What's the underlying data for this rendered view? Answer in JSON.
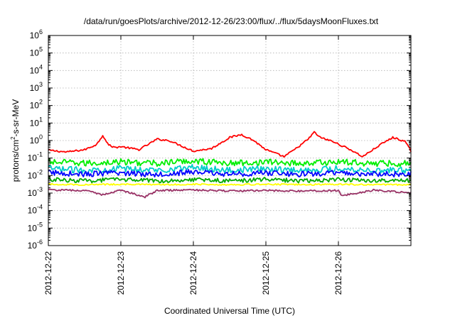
{
  "chart_data": {
    "type": "line",
    "title": "/data/run/goesPlots/archive/2012-12-26/23:00/flux/../flux/5daysMoonFluxes.txt",
    "xlabel": "Coordinated Universal Time (UTC)",
    "ylabel_base": "protons/cm",
    "ylabel_sup": "2",
    "ylabel_rest": "-s-sr-MeV",
    "y_scale": "log",
    "ylim": [
      1e-06,
      1000000.0
    ],
    "y_ticks": [
      {
        "exp": "-6"
      },
      {
        "exp": "-5"
      },
      {
        "exp": "-4"
      },
      {
        "exp": "-3"
      },
      {
        "exp": "-2"
      },
      {
        "exp": "-1"
      },
      {
        "exp": "0"
      },
      {
        "exp": "1"
      },
      {
        "exp": "2"
      },
      {
        "exp": "3"
      },
      {
        "exp": "4"
      },
      {
        "exp": "5"
      },
      {
        "exp": "6"
      }
    ],
    "y_tick_base": "10",
    "xlim": [
      "2012-12-22",
      "2012-12-27"
    ],
    "x_ticks": [
      "2012-12-22",
      "2012-12-23",
      "2012-12-24",
      "2012-12-25",
      "2012-12-26"
    ],
    "grid": true,
    "series": [
      {
        "color": "#ff0000",
        "x": [
          "2012-12-22 00:00",
          "2012-12-22 06:00",
          "2012-12-22 12:00",
          "2012-12-22 16:00",
          "2012-12-22 18:00",
          "2012-12-22 20:00",
          "2012-12-22 22:00",
          "2012-12-23 00:00",
          "2012-12-23 06:00",
          "2012-12-23 12:00",
          "2012-12-23 16:00",
          "2012-12-23 20:00",
          "2012-12-24 00:00",
          "2012-12-24 06:00",
          "2012-12-24 12:00",
          "2012-12-24 16:00",
          "2012-12-24 20:00",
          "2012-12-25 00:00",
          "2012-12-25 06:00",
          "2012-12-25 10:00",
          "2012-12-25 14:00",
          "2012-12-25 16:00",
          "2012-12-25 18:00",
          "2012-12-25 22:00",
          "2012-12-26 04:00",
          "2012-12-26 08:00",
          "2012-12-26 14:00",
          "2012-12-26 18:00",
          "2012-12-26 22:00",
          "2012-12-27 00:00"
        ],
        "values": [
          0.28,
          0.22,
          0.3,
          0.6,
          2.0,
          0.55,
          0.4,
          0.45,
          0.3,
          1.2,
          1.0,
          0.5,
          0.25,
          0.35,
          1.5,
          2.2,
          1.0,
          0.3,
          0.12,
          0.35,
          1.2,
          3.0,
          1.5,
          0.9,
          0.3,
          0.12,
          0.6,
          1.5,
          0.9,
          0.25
        ]
      },
      {
        "color": "#00ee00",
        "x": [
          "2012-12-22 00:00",
          "2012-12-22 12:00",
          "2012-12-23 00:00",
          "2012-12-23 12:00",
          "2012-12-24 00:00",
          "2012-12-24 12:00",
          "2012-12-25 00:00",
          "2012-12-25 12:00",
          "2012-12-26 00:00",
          "2012-12-26 12:00",
          "2012-12-27 00:00"
        ],
        "values": [
          0.06,
          0.05,
          0.06,
          0.05,
          0.07,
          0.05,
          0.06,
          0.05,
          0.06,
          0.05,
          0.05
        ]
      },
      {
        "color": "#00cccc",
        "x": [
          "2012-12-22 00:00",
          "2012-12-22 12:00",
          "2012-12-23 00:00",
          "2012-12-23 12:00",
          "2012-12-24 00:00",
          "2012-12-24 12:00",
          "2012-12-25 00:00",
          "2012-12-25 12:00",
          "2012-12-26 00:00",
          "2012-12-26 12:00",
          "2012-12-27 00:00"
        ],
        "values": [
          0.025,
          0.02,
          0.025,
          0.02,
          0.03,
          0.02,
          0.025,
          0.02,
          0.025,
          0.02,
          0.02
        ]
      },
      {
        "color": "#0000ff",
        "x": [
          "2012-12-22 00:00",
          "2012-12-22 12:00",
          "2012-12-23 00:00",
          "2012-12-23 12:00",
          "2012-12-24 00:00",
          "2012-12-24 12:00",
          "2012-12-25 00:00",
          "2012-12-25 12:00",
          "2012-12-26 00:00",
          "2012-12-26 12:00",
          "2012-12-27 00:00"
        ],
        "values": [
          0.015,
          0.012,
          0.014,
          0.012,
          0.016,
          0.012,
          0.014,
          0.012,
          0.014,
          0.012,
          0.012
        ]
      },
      {
        "color": "#00aa00",
        "x": [
          "2012-12-22 00:00",
          "2012-12-22 12:00",
          "2012-12-23 00:00",
          "2012-12-23 12:00",
          "2012-12-24 00:00",
          "2012-12-24 12:00",
          "2012-12-25 00:00",
          "2012-12-25 12:00",
          "2012-12-26 00:00",
          "2012-12-26 12:00",
          "2012-12-27 00:00"
        ],
        "values": [
          0.006,
          0.005,
          0.006,
          0.005,
          0.006,
          0.005,
          0.006,
          0.005,
          0.006,
          0.005,
          0.005
        ]
      },
      {
        "color": "#ffff00",
        "x": [
          "2012-12-22 00:00",
          "2012-12-22 12:00",
          "2012-12-23 00:00",
          "2012-12-23 12:00",
          "2012-12-24 00:00",
          "2012-12-24 12:00",
          "2012-12-25 00:00",
          "2012-12-25 12:00",
          "2012-12-26 00:00",
          "2012-12-26 12:00",
          "2012-12-27 00:00"
        ],
        "values": [
          0.0032,
          0.003,
          0.0032,
          0.003,
          0.0032,
          0.003,
          0.0032,
          0.003,
          0.0032,
          0.003,
          0.003
        ]
      },
      {
        "color": "#993366",
        "x": [
          "2012-12-22 00:00",
          "2012-12-22 12:00",
          "2012-12-22 18:00",
          "2012-12-23 00:00",
          "2012-12-23 08:00",
          "2012-12-23 12:00",
          "2012-12-24 00:00",
          "2012-12-24 12:00",
          "2012-12-25 00:00",
          "2012-12-25 12:00",
          "2012-12-26 00:00",
          "2012-12-26 01:00",
          "2012-12-26 12:00",
          "2012-12-27 00:00"
        ],
        "values": [
          0.0015,
          0.0014,
          0.0008,
          0.0015,
          0.0006,
          0.0014,
          0.0015,
          0.0013,
          0.0014,
          0.0013,
          0.0014,
          0.0007,
          0.0015,
          0.001
        ]
      }
    ]
  }
}
